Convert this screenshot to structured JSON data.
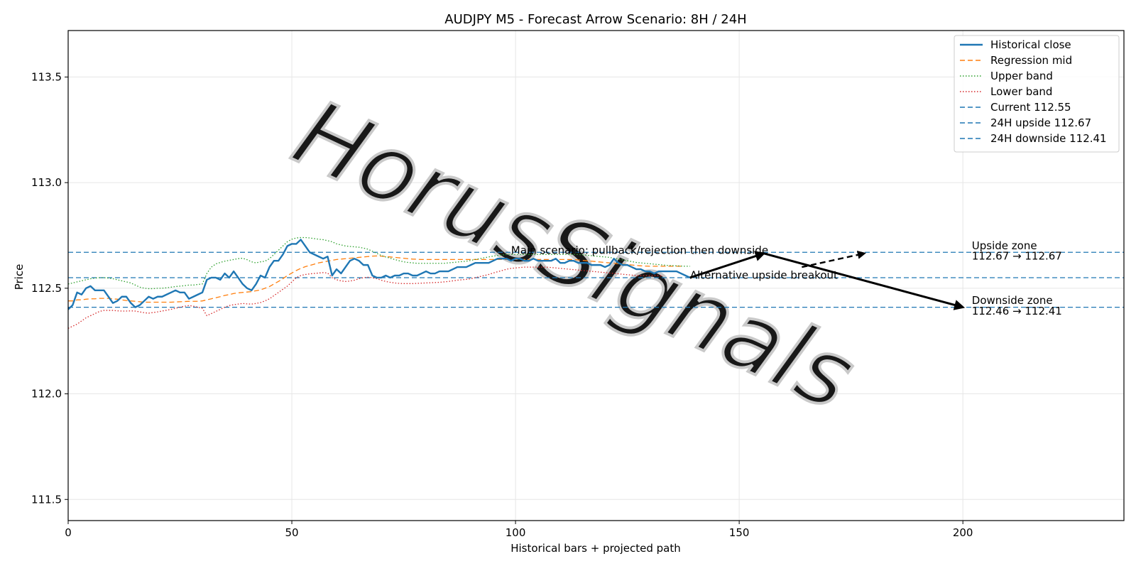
{
  "chart_data": {
    "type": "line",
    "title": "AUDJPY M5 - Forecast Arrow Scenario: 8H / 24H",
    "xlabel": "Historical bars + projected path",
    "ylabel": "Price",
    "xlim": [
      0,
      236
    ],
    "ylim": [
      111.4,
      113.72
    ],
    "xticks": [
      0,
      50,
      100,
      150,
      200
    ],
    "yticks": [
      111.5,
      112.0,
      112.5,
      113.0,
      113.5
    ],
    "grid": true,
    "legend_position": "top-right",
    "watermark": "HorusSignals",
    "series": [
      {
        "name": "Historical close",
        "style": "solid",
        "color": "#1f77b4",
        "y": [
          112.4,
          112.42,
          112.48,
          112.47,
          112.5,
          112.51,
          112.49,
          112.49,
          112.49,
          112.46,
          112.43,
          112.44,
          112.46,
          112.46,
          112.43,
          112.41,
          112.42,
          112.44,
          112.46,
          112.45,
          112.46,
          112.46,
          112.47,
          112.48,
          112.49,
          112.48,
          112.48,
          112.45,
          112.46,
          112.47,
          112.48,
          112.54,
          112.55,
          112.55,
          112.54,
          112.57,
          112.55,
          112.58,
          112.55,
          112.52,
          112.5,
          112.49,
          112.52,
          112.56,
          112.55,
          112.6,
          112.63,
          112.63,
          112.66,
          112.7,
          112.71,
          112.71,
          112.73,
          112.7,
          112.67,
          112.66,
          112.65,
          112.64,
          112.65,
          112.56,
          112.59,
          112.57,
          112.6,
          112.63,
          112.64,
          112.63,
          112.61,
          112.61,
          112.56,
          112.55,
          112.55,
          112.56,
          112.55,
          112.56,
          112.56,
          112.57,
          112.57,
          112.56,
          112.56,
          112.57,
          112.58,
          112.57,
          112.57,
          112.58,
          112.58,
          112.58,
          112.59,
          112.6,
          112.6,
          112.6,
          112.61,
          112.62,
          112.62,
          112.62,
          112.62,
          112.63,
          112.64,
          112.64,
          112.64,
          112.63,
          112.64,
          112.64,
          112.63,
          112.63,
          112.64,
          112.63,
          112.63,
          112.63,
          112.63,
          112.64,
          112.62,
          112.62,
          112.63,
          112.63,
          112.62,
          112.62,
          112.62,
          112.61,
          112.61,
          112.61,
          112.6,
          112.61,
          112.64,
          112.62,
          112.61,
          112.61,
          112.6,
          112.59,
          112.59,
          112.58,
          112.58,
          112.57,
          112.58,
          112.58,
          112.58,
          112.58,
          112.58,
          112.57,
          112.56,
          112.55
        ]
      },
      {
        "name": "Regression mid",
        "style": "dashed",
        "color": "#ff7f0e",
        "y": [
          112.44,
          112.44,
          112.445,
          112.445,
          112.448,
          112.45,
          112.45,
          112.452,
          112.452,
          112.452,
          112.45,
          112.448,
          112.445,
          112.442,
          112.44,
          112.438,
          112.436,
          112.434,
          112.434,
          112.434,
          112.434,
          112.434,
          112.434,
          112.434,
          112.435,
          112.436,
          112.437,
          112.438,
          112.438,
          112.438,
          112.44,
          112.445,
          112.45,
          112.455,
          112.46,
          112.466,
          112.47,
          112.475,
          112.478,
          112.48,
          112.482,
          112.484,
          112.488,
          112.492,
          112.5,
          112.508,
          112.52,
          112.532,
          112.545,
          112.56,
          112.572,
          112.584,
          112.594,
          112.602,
          112.608,
          112.614,
          112.62,
          112.624,
          112.628,
          112.632,
          112.636,
          112.638,
          112.64,
          112.642,
          112.644,
          112.646,
          112.648,
          112.65,
          112.652,
          112.653,
          112.652,
          112.65,
          112.648,
          112.646,
          112.644,
          112.642,
          112.64,
          112.638,
          112.637,
          112.636,
          112.636,
          112.636,
          112.636,
          112.636,
          112.636,
          112.636,
          112.636,
          112.636,
          112.636,
          112.636,
          112.636,
          112.636,
          112.636,
          112.636,
          112.636,
          112.636,
          112.636,
          112.636,
          112.636,
          112.636,
          112.636,
          112.636,
          112.636,
          112.636,
          112.636,
          112.636,
          112.636,
          112.636,
          112.636,
          112.636,
          112.636,
          112.636,
          112.636,
          112.636,
          112.634,
          112.632,
          112.63,
          112.628,
          112.626,
          112.624,
          112.622,
          112.62,
          112.618,
          112.616,
          112.614,
          112.612,
          112.61,
          112.608,
          112.606,
          112.605,
          112.604,
          112.604,
          112.604,
          112.604,
          112.604,
          112.604,
          112.604,
          112.604
        ]
      },
      {
        "name": "Upper band",
        "style": "dotted",
        "color": "#2ca02c",
        "y": [
          112.52,
          112.525,
          112.53,
          112.535,
          112.54,
          112.545,
          112.548,
          112.55,
          112.55,
          112.548,
          112.545,
          112.54,
          112.535,
          112.53,
          112.525,
          112.515,
          112.505,
          112.5,
          112.498,
          112.498,
          112.5,
          112.5,
          112.502,
          112.505,
          112.508,
          112.51,
          112.512,
          112.515,
          112.515,
          112.518,
          112.52,
          112.57,
          112.6,
          112.615,
          112.622,
          112.628,
          112.632,
          112.636,
          112.64,
          112.642,
          112.635,
          112.625,
          112.62,
          112.625,
          112.628,
          112.64,
          112.66,
          112.68,
          112.7,
          112.72,
          112.732,
          112.738,
          112.74,
          112.74,
          112.738,
          112.735,
          112.732,
          112.73,
          112.725,
          112.72,
          112.71,
          112.705,
          112.7,
          112.698,
          112.696,
          112.694,
          112.69,
          112.685,
          112.675,
          112.665,
          112.655,
          112.648,
          112.642,
          112.636,
          112.63,
          112.625,
          112.622,
          112.62,
          112.618,
          112.618,
          112.618,
          112.618,
          112.618,
          112.618,
          112.618,
          112.62,
          112.622,
          112.624,
          112.626,
          112.628,
          112.632,
          112.636,
          112.64,
          112.644,
          112.648,
          112.652,
          112.655,
          112.658,
          112.66,
          112.66,
          112.66,
          112.66,
          112.66,
          112.66,
          112.66,
          112.66,
          112.66,
          112.66,
          112.66,
          112.66,
          112.66,
          112.66,
          112.66,
          112.66,
          112.66,
          112.658,
          112.656,
          112.654,
          112.652,
          112.65,
          112.648,
          112.646,
          112.642,
          112.638,
          112.634,
          112.63,
          112.626,
          112.622,
          112.62,
          112.618,
          112.616,
          112.614,
          112.612,
          112.61,
          112.608,
          112.607,
          112.606,
          112.605,
          112.604,
          112.604
        ]
      },
      {
        "name": "Lower band",
        "style": "dotted",
        "color": "#d62728",
        "y": [
          112.31,
          112.32,
          112.33,
          112.345,
          112.36,
          112.37,
          112.38,
          112.39,
          112.395,
          112.395,
          112.395,
          112.393,
          112.392,
          112.392,
          112.393,
          112.392,
          112.388,
          112.384,
          112.382,
          112.385,
          112.388,
          112.392,
          112.396,
          112.4,
          112.405,
          112.41,
          112.415,
          112.418,
          112.415,
          112.41,
          112.405,
          112.37,
          112.38,
          112.39,
          112.4,
          112.41,
          112.418,
          112.422,
          112.425,
          112.428,
          112.426,
          112.425,
          112.428,
          112.432,
          112.44,
          112.45,
          112.465,
          112.48,
          112.495,
          112.51,
          112.53,
          112.55,
          112.56,
          112.565,
          112.568,
          112.57,
          112.572,
          112.574,
          112.572,
          112.55,
          112.54,
          112.535,
          112.532,
          112.534,
          112.538,
          112.545,
          112.55,
          112.552,
          112.55,
          112.545,
          112.538,
          112.532,
          112.528,
          112.525,
          112.523,
          112.522,
          112.522,
          112.522,
          112.523,
          112.524,
          112.525,
          112.526,
          112.527,
          112.528,
          112.53,
          112.532,
          112.535,
          112.538,
          112.54,
          112.542,
          112.545,
          112.55,
          112.555,
          112.56,
          112.565,
          112.572,
          112.578,
          112.584,
          112.59,
          112.594,
          112.596,
          112.598,
          112.6,
          112.6,
          112.6,
          112.6,
          112.6,
          112.6,
          112.598,
          112.596,
          112.594,
          112.592,
          112.59,
          112.588,
          112.586,
          112.584,
          112.582,
          112.58,
          112.578,
          112.576,
          112.574,
          112.572,
          112.57,
          112.568,
          112.566,
          112.564,
          112.562,
          112.56,
          112.56,
          112.56,
          112.56,
          112.56,
          112.56,
          112.56
        ]
      }
    ],
    "reference_lines": [
      {
        "name": "Current 112.55",
        "y": 112.55,
        "style": "dashed",
        "color": "#1f77b4"
      },
      {
        "name": "24H upside 112.67",
        "y": 112.67,
        "style": "dashed",
        "color": "#1f77b4"
      },
      {
        "name": "24H downside 112.41",
        "y": 112.41,
        "style": "dashed",
        "color": "#1f77b4"
      }
    ],
    "arrows": [
      {
        "name": "main-leg-1",
        "from": [
          139,
          112.55
        ],
        "to": [
          155.5,
          112.665
        ],
        "style": "solid"
      },
      {
        "name": "main-leg-2",
        "from": [
          155.5,
          112.665
        ],
        "to": [
          200,
          112.41
        ],
        "style": "solid"
      },
      {
        "name": "alt-breakout",
        "from": [
          164,
          112.6
        ],
        "to": [
          178,
          112.665
        ],
        "style": "dashed"
      }
    ],
    "annotations": [
      {
        "name": "main-scenario",
        "text": "Main scenario: pullback/rejection then downside",
        "x": 99,
        "y": 112.662
      },
      {
        "name": "alt-scenario",
        "text": "Alternative upside breakout",
        "x": 139,
        "y": 112.545
      },
      {
        "name": "upside-zone-title",
        "text": "Upside zone",
        "x": 202,
        "y": 112.685
      },
      {
        "name": "upside-zone-range",
        "text": "112.67 → 112.67",
        "x": 202,
        "y": 112.635
      },
      {
        "name": "downside-zone-title",
        "text": "Downside zone",
        "x": 202,
        "y": 112.425
      },
      {
        "name": "downside-zone-range",
        "text": "112.46 → 112.41",
        "x": 202,
        "y": 112.375
      }
    ]
  }
}
